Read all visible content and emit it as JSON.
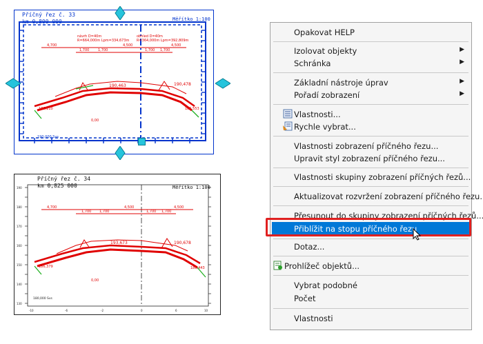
{
  "section1": {
    "title": "Příčný řez č. 33",
    "station": "km 0,800 000",
    "scale": "Měřítko 1:100",
    "top_dims": [
      "4,700",
      "1,700",
      "1,700",
      "4,500",
      "1,700",
      "1,700",
      "4,500"
    ],
    "design_left": "návrh D=40m\nR=664,000m  Lpm=334,673m",
    "design_right": "obhled D=40m\nR=364,000m  Lpm=392,809m",
    "elev_center": "190,463",
    "elev_right": "190,478",
    "elev_left_bottom": "186,110",
    "elev_right_bottom": "185,553",
    "point_label": "0,00",
    "bottom_label": "190,000 Svs"
  },
  "section2": {
    "title": "Příčný řez č. 34",
    "station": "km 0,825 000",
    "scale": "Měřítko 1:100",
    "top_dims": [
      "4,700",
      "1,700",
      "1,700",
      "4,500",
      "1,700",
      "1,700",
      "4,500"
    ],
    "elev_center": "193,673",
    "elev_right": "190,678",
    "elev_left_bottom": "186,379",
    "elev_right_bottom": "186,443",
    "point_label": "0,00",
    "bottom_label": "180,000 Svs",
    "y_ticks": [
      "190",
      "185",
      "180",
      "175",
      "170",
      "165",
      "160",
      "155",
      "150",
      "145",
      "140",
      "135",
      "130"
    ],
    "x_ticks": [
      "-10",
      "-8",
      "-6",
      "-4",
      "-2",
      "0",
      "2",
      "4",
      "6",
      "8",
      "10"
    ]
  },
  "menu": {
    "items": [
      {
        "label": "Opakovat HELP"
      },
      {
        "label": "Izolovat objekty",
        "submenu": true
      },
      {
        "label": "Schránka",
        "submenu": true
      },
      {
        "label": "Základní nástroje úprav",
        "submenu": true
      },
      {
        "label": "Pořadí zobrazení",
        "submenu": true
      },
      {
        "label": "Vlastnosti...",
        "icon": "properties-icon"
      },
      {
        "label": "Rychle vybrat...",
        "icon": "quick-select-icon"
      },
      {
        "label": "Vlastnosti zobrazení příčného řezu..."
      },
      {
        "label": "Upravit styl zobrazení příčného řezu..."
      },
      {
        "label": "Vlastnosti skupiny zobrazení příčných řezů..."
      },
      {
        "label": "Aktualizovat rozvržení zobrazení příčného řezu..."
      },
      {
        "label": "Přesunout do skupiny zobrazení příčných řezů..."
      },
      {
        "label": "Přiblížit na stopu příčného řezu",
        "highlighted": true
      },
      {
        "label": "Dotaz..."
      },
      {
        "label": "Prohlížeč objektů...",
        "icon": "object-viewer-icon"
      },
      {
        "label": "Vybrat podobné"
      },
      {
        "label": "Počet"
      },
      {
        "label": "Vlastnosti"
      }
    ]
  },
  "colors": {
    "selection_blue": "#0033cc",
    "grip_cyan": "#26c4dc",
    "road_red": "#e00000",
    "slope_green": "#22b022",
    "menu_highlight": "#0078d7",
    "callout_red": "#e02020"
  }
}
